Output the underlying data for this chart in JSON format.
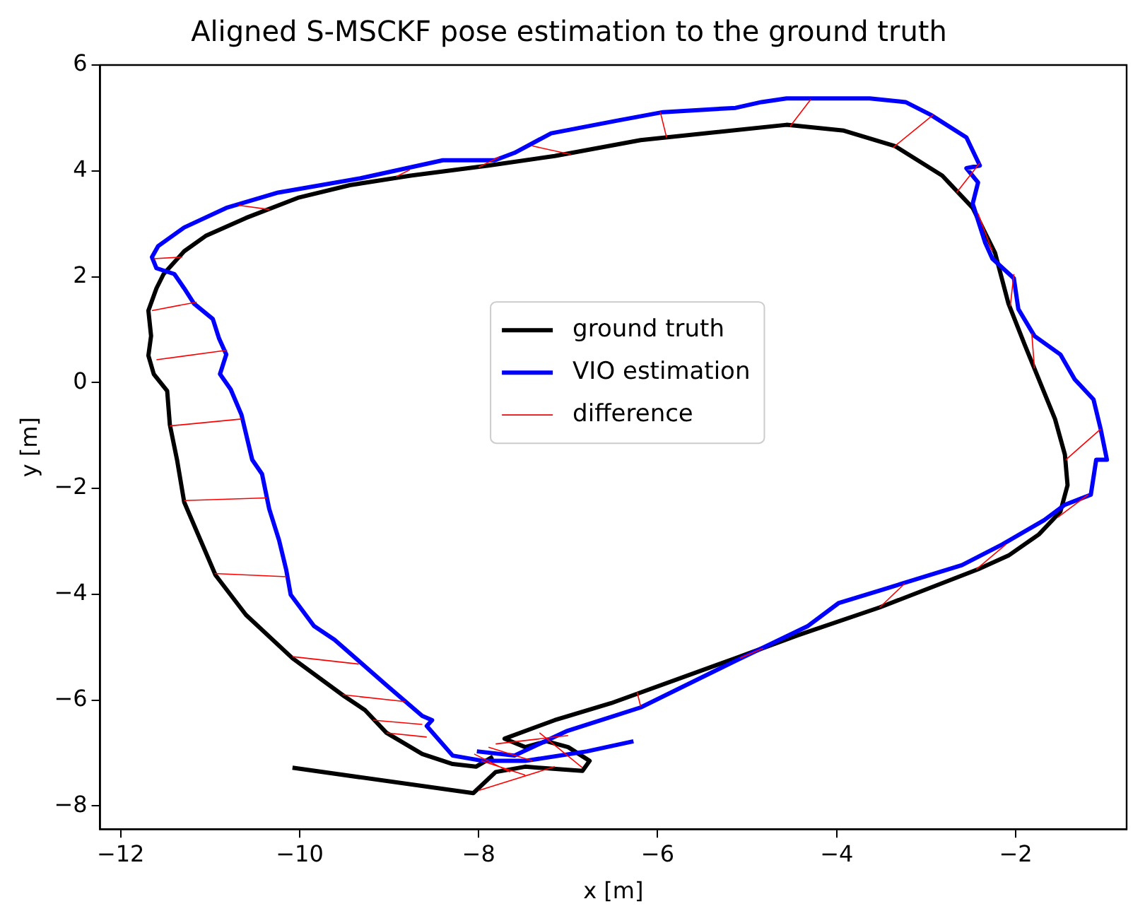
{
  "chart_data": {
    "type": "line",
    "title": "Aligned S-MSCKF pose estimation to the ground truth",
    "xlabel": "x [m]",
    "ylabel": "y [m]",
    "xlim": [
      -12.23,
      -0.76
    ],
    "ylim": [
      -8.44,
      6.0
    ],
    "xticks": [
      -12,
      -10,
      -8,
      -6,
      -4,
      -2
    ],
    "yticks": [
      -8,
      -6,
      -4,
      -2,
      0,
      2,
      4,
      6
    ],
    "grid": false,
    "legend": "center",
    "marker": "none",
    "line_style": "solid",
    "series": [
      {
        "name": "ground truth",
        "color": "#000000",
        "type": "line",
        "x": [
          -10.08,
          -8.06,
          -7.81,
          -7.48,
          -6.84,
          -6.76,
          -7.0,
          -7.24,
          -7.48,
          -7.71,
          -7.15,
          -6.52,
          -5.13,
          -4.44,
          -3.52,
          -2.42,
          -2.08,
          -1.74,
          -1.5,
          -1.42,
          -1.45,
          -1.56,
          -1.9,
          -2.08,
          -2.23,
          -2.48,
          -2.82,
          -3.35,
          -3.92,
          -4.56,
          -6.19,
          -7.15,
          -7.89,
          -8.76,
          -9.44,
          -10.02,
          -10.6,
          -11.05,
          -11.29,
          -11.52,
          -11.6,
          -11.69,
          -11.66,
          -11.69,
          -11.63,
          -11.48,
          -11.45,
          -11.37,
          -11.29,
          -10.94,
          -10.6,
          -10.08,
          -9.5,
          -9.27,
          -9.03,
          -8.63,
          -8.29,
          -8.03,
          -7.84
        ],
        "values": [
          -7.28,
          -7.76,
          -7.36,
          -7.26,
          -7.34,
          -7.15,
          -6.89,
          -6.78,
          -6.89,
          -6.73,
          -6.38,
          -6.06,
          -5.21,
          -4.78,
          -4.25,
          -3.53,
          -3.27,
          -2.87,
          -2.44,
          -1.94,
          -1.36,
          -0.69,
          0.72,
          1.49,
          2.45,
          3.3,
          3.91,
          4.47,
          4.76,
          4.87,
          4.58,
          4.28,
          4.1,
          3.91,
          3.73,
          3.49,
          3.11,
          2.77,
          2.48,
          2.05,
          1.78,
          1.36,
          0.88,
          0.51,
          0.16,
          -0.16,
          -0.8,
          -1.46,
          -2.26,
          -3.64,
          -4.39,
          -5.21,
          -5.93,
          -6.19,
          -6.62,
          -7.02,
          -7.21,
          -7.26,
          -7.07
        ]
      },
      {
        "name": "VIO estimation",
        "color": "#0000ff",
        "type": "line",
        "x": [
          -8.02,
          -7.6,
          -7.02,
          -6.19,
          -5.13,
          -4.32,
          -3.98,
          -3.52,
          -2.6,
          -2.15,
          -1.68,
          -1.45,
          -1.16,
          -1.1,
          -0.98,
          -1.05,
          -1.13,
          -1.34,
          -1.5,
          -1.79,
          -1.97,
          -2.02,
          -2.26,
          -2.34,
          -2.48,
          -2.42,
          -2.55,
          -2.4,
          -2.55,
          -2.95,
          -3.23,
          -3.63,
          -4.1,
          -4.56,
          -4.84,
          -5.13,
          -5.94,
          -6.45,
          -7.19,
          -7.6,
          -7.82,
          -8.4,
          -9.32,
          -10.24,
          -10.82,
          -11.29,
          -11.58,
          -11.65,
          -11.6,
          -11.4,
          -11.29,
          -11.18,
          -10.97,
          -10.9,
          -10.82,
          -10.89,
          -10.77,
          -10.65,
          -10.53,
          -10.42,
          -10.34,
          -10.23,
          -10.15,
          -10.1,
          -9.84,
          -9.61,
          -9.03,
          -8.63,
          -8.52,
          -8.58,
          -8.29,
          -7.95,
          -7.48,
          -6.79,
          -6.27
        ],
        "values": [
          -6.97,
          -7.05,
          -6.59,
          -6.14,
          -5.26,
          -4.6,
          -4.17,
          -3.93,
          -3.45,
          -3.06,
          -2.6,
          -2.31,
          -2.12,
          -1.46,
          -1.46,
          -0.88,
          -0.32,
          0.06,
          0.53,
          0.88,
          1.39,
          1.97,
          2.34,
          2.64,
          3.38,
          3.78,
          4.05,
          4.1,
          4.63,
          5.06,
          5.3,
          5.37,
          5.37,
          5.37,
          5.3,
          5.19,
          5.11,
          4.95,
          4.71,
          4.34,
          4.2,
          4.2,
          3.86,
          3.59,
          3.3,
          2.93,
          2.58,
          2.37,
          2.16,
          2.05,
          1.78,
          1.49,
          1.2,
          0.83,
          0.53,
          0.16,
          -0.13,
          -0.61,
          -1.46,
          -1.73,
          -2.39,
          -2.98,
          -3.54,
          -4.01,
          -4.6,
          -4.86,
          -5.72,
          -6.3,
          -6.38,
          -6.49,
          -7.05,
          -7.15,
          -7.15,
          -6.97,
          -6.78
        ]
      },
      {
        "name": "difference",
        "color": "#ff0000",
        "type": "line",
        "x": [
          -11.63,
          -11.31,
          null,
          -11.65,
          -11.15,
          null,
          -11.6,
          -10.81,
          null,
          -11.45,
          -10.65,
          null,
          -11.29,
          -10.37,
          null,
          -10.95,
          -10.15,
          null,
          -10.08,
          -9.34,
          null,
          -9.52,
          -8.82,
          null,
          -9.18,
          -8.63,
          null,
          -9.03,
          -8.58,
          null,
          -10.68,
          -10.34,
          null,
          -7.4,
          -6.97,
          null,
          -8.0,
          -7.77,
          null,
          -8.92,
          -8.77,
          null,
          -8.0,
          -7.15,
          null,
          -5.97,
          -5.9,
          null,
          -4.29,
          -4.52,
          null,
          -2.92,
          -3.37,
          null,
          -2.4,
          -2.66,
          null,
          -2.42,
          -2.26,
          null,
          -2.02,
          -2.06,
          null,
          -1.82,
          -1.79,
          null,
          -1.05,
          -1.44,
          null,
          -1.19,
          -1.53,
          null,
          -2.11,
          -2.44,
          null,
          -3.24,
          -3.52,
          null,
          -4.82,
          -5.08,
          null,
          -6.23,
          -6.19,
          null,
          -7.89,
          -7.4,
          null,
          -7.97,
          -7.48,
          null,
          -7.81,
          -7.0,
          null,
          -7.32,
          -6.84,
          null,
          -8.05,
          -7.65
        ],
        "values": [
          2.34,
          2.37,
          null,
          1.36,
          1.52,
          null,
          0.43,
          0.61,
          null,
          -0.82,
          -0.69,
          null,
          -2.23,
          -2.18,
          null,
          -3.61,
          -3.67,
          null,
          -5.18,
          -5.32,
          null,
          -5.9,
          -6.03,
          null,
          -6.38,
          -6.46,
          null,
          -6.62,
          -6.7,
          null,
          3.35,
          3.27,
          null,
          4.47,
          4.31,
          null,
          4.07,
          4.26,
          null,
          3.89,
          4.02,
          null,
          -7.71,
          -7.26,
          null,
          5.11,
          4.63,
          null,
          5.35,
          4.84,
          null,
          5.06,
          4.44,
          null,
          4.15,
          3.59,
          null,
          3.19,
          2.48,
          null,
          2.05,
          1.44,
          null,
          0.93,
          0.27,
          null,
          -0.88,
          -1.46,
          null,
          -2.12,
          -2.55,
          null,
          -3.06,
          -3.53,
          null,
          -3.8,
          -4.25,
          null,
          -5.02,
          -5.21,
          null,
          -5.85,
          -6.12,
          null,
          -6.89,
          -7.15,
          null,
          -7.15,
          -7.42,
          null,
          -6.83,
          -6.67,
          null,
          -6.62,
          -7.28,
          null,
          -7.02,
          -7.36
        ]
      }
    ]
  }
}
